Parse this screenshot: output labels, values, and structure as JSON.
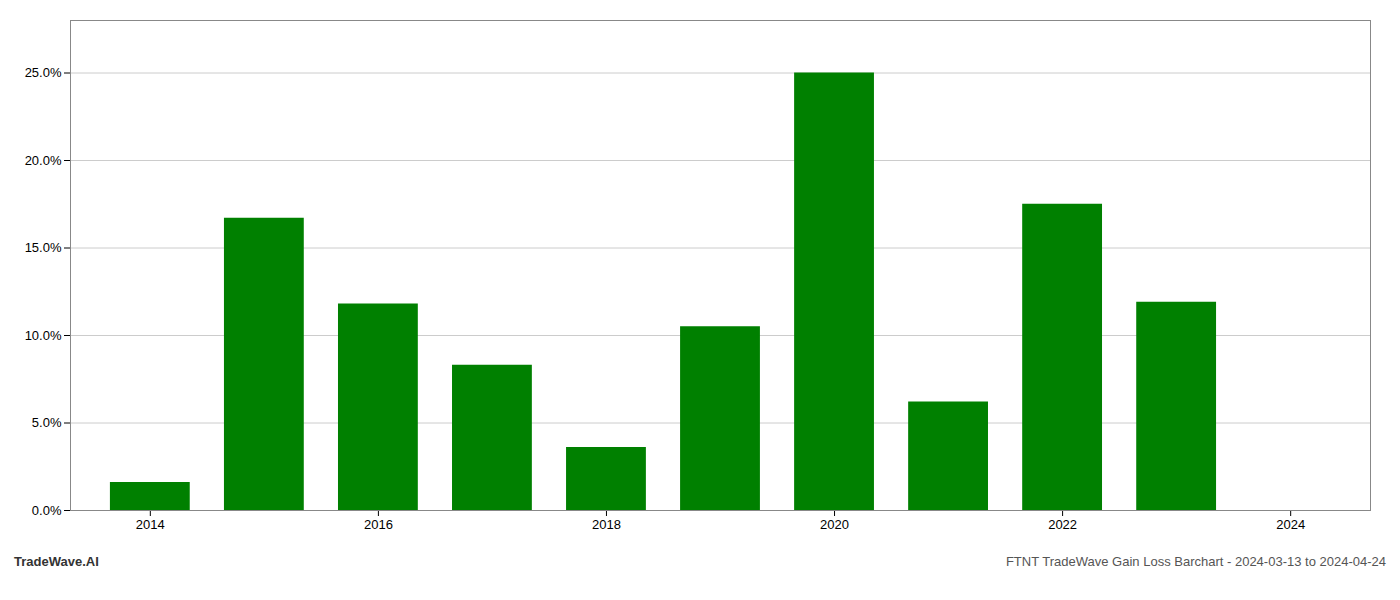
{
  "chart_data": {
    "type": "bar",
    "title": "FTNT TradeWave Gain Loss Barchart - 2024-03-13 to 2024-04-24",
    "annotations": [
      "TradeWave.AI"
    ],
    "x": [
      2014,
      2015,
      2016,
      2017,
      2018,
      2019,
      2020,
      2021,
      2022,
      2023,
      2024
    ],
    "values": [
      0.016,
      0.167,
      0.118,
      0.083,
      0.036,
      0.105,
      0.25,
      0.062,
      0.175,
      0.119,
      0.0
    ],
    "color": "#008000",
    "xlim": [
      2013.3,
      2024.7
    ],
    "xticks": [
      2014,
      2016,
      2018,
      2020,
      2022,
      2024
    ],
    "ylim": [
      0,
      0.28
    ],
    "yticks": [
      {
        "value": 0.0,
        "label": "0.0%"
      },
      {
        "value": 0.05,
        "label": "5.0%"
      },
      {
        "value": 0.1,
        "label": "10.0%"
      },
      {
        "value": 0.15,
        "label": "15.0%"
      },
      {
        "value": 0.2,
        "label": "20.0%"
      },
      {
        "value": 0.25,
        "label": "25.0%"
      }
    ],
    "grid": true
  }
}
